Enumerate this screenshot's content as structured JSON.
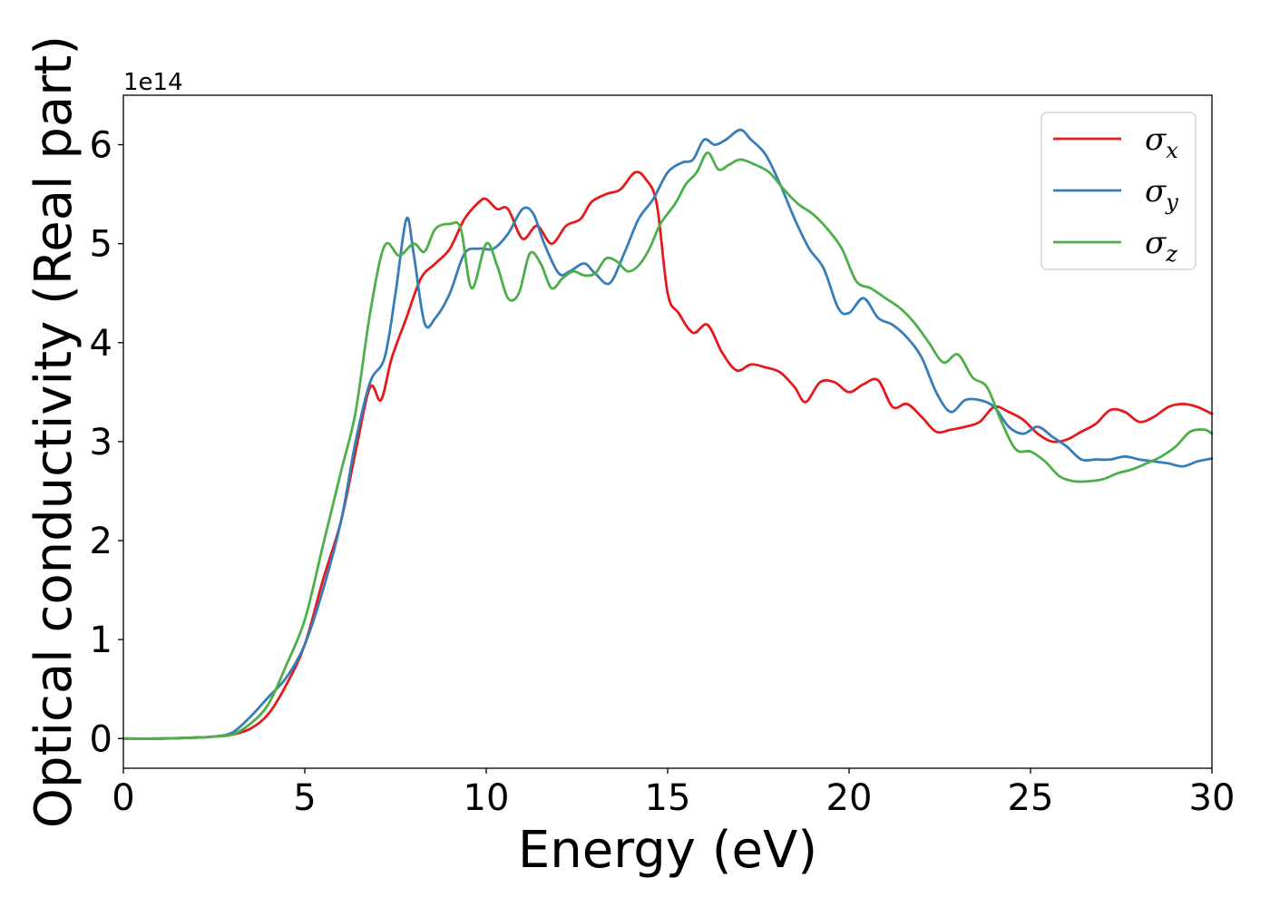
{
  "chart_data": {
    "type": "line",
    "xlabel": "Energy (eV)",
    "ylabel": "Optical conductivity (Real part)",
    "y_offset_label": "1e14",
    "xlim": [
      0,
      30
    ],
    "ylim": [
      -0.3,
      6.5
    ],
    "y_scale_factor": "1e14",
    "x_ticks": [
      0,
      5,
      10,
      15,
      20,
      25,
      30
    ],
    "y_ticks": [
      0,
      1,
      2,
      3,
      4,
      5,
      6
    ],
    "grid": false,
    "legend_position": "top-right",
    "series": [
      {
        "name": "σx",
        "symbol": "σ",
        "subscript": "x",
        "color": "#e41a1c",
        "x": [
          0,
          1,
          2,
          2.5,
          3,
          3.5,
          4,
          4.5,
          5,
          5.5,
          6,
          6.4,
          6.8,
          7.1,
          7.4,
          7.8,
          8.2,
          8.6,
          9.0,
          9.4,
          9.8,
          10.0,
          10.3,
          10.6,
          11.0,
          11.4,
          11.8,
          12.2,
          12.6,
          12.9,
          13.3,
          13.7,
          14.1,
          14.4,
          14.7,
          15.0,
          15.3,
          15.7,
          16.1,
          16.5,
          16.9,
          17.3,
          17.7,
          18.1,
          18.5,
          18.8,
          19.2,
          19.6,
          20.0,
          20.4,
          20.8,
          21.2,
          21.6,
          22.0,
          22.4,
          22.8,
          23.2,
          23.6,
          24.0,
          24.4,
          24.8,
          25.2,
          25.6,
          26.0,
          26.4,
          26.8,
          27.2,
          27.6,
          28.0,
          28.4,
          28.8,
          29.2,
          29.6,
          30.0
        ],
        "y": [
          0,
          0,
          0.01,
          0.02,
          0.04,
          0.1,
          0.25,
          0.55,
          0.95,
          1.6,
          2.2,
          2.9,
          3.55,
          3.42,
          3.85,
          4.25,
          4.65,
          4.8,
          4.95,
          5.25,
          5.42,
          5.45,
          5.35,
          5.35,
          5.05,
          5.18,
          5.0,
          5.18,
          5.25,
          5.42,
          5.5,
          5.55,
          5.72,
          5.65,
          5.4,
          4.5,
          4.3,
          4.1,
          4.18,
          3.9,
          3.72,
          3.78,
          3.75,
          3.7,
          3.55,
          3.4,
          3.6,
          3.6,
          3.5,
          3.58,
          3.62,
          3.35,
          3.38,
          3.25,
          3.1,
          3.12,
          3.15,
          3.2,
          3.35,
          3.3,
          3.22,
          3.08,
          3.0,
          3.02,
          3.1,
          3.18,
          3.32,
          3.3,
          3.2,
          3.25,
          3.35,
          3.38,
          3.35,
          3.28
        ]
      },
      {
        "name": "σy",
        "symbol": "σ",
        "subscript": "y",
        "color": "#377eb8",
        "x": [
          0,
          1,
          2,
          2.5,
          3,
          3.5,
          4,
          4.5,
          5,
          5.5,
          6,
          6.4,
          6.8,
          7.2,
          7.5,
          7.8,
          8.0,
          8.3,
          8.6,
          9.0,
          9.4,
          9.8,
          10.2,
          10.6,
          11.0,
          11.3,
          11.6,
          12.0,
          12.3,
          12.7,
          13.0,
          13.4,
          13.8,
          14.2,
          14.6,
          15.0,
          15.4,
          15.7,
          16.0,
          16.3,
          16.6,
          17.0,
          17.3,
          17.7,
          18.1,
          18.5,
          18.9,
          19.3,
          19.7,
          20.0,
          20.4,
          20.8,
          21.2,
          21.6,
          22.0,
          22.4,
          22.8,
          23.2,
          23.6,
          24.0,
          24.4,
          24.8,
          25.2,
          25.6,
          26.0,
          26.4,
          26.8,
          27.2,
          27.6,
          28.0,
          28.4,
          28.8,
          29.2,
          29.6,
          30.0
        ],
        "y": [
          0,
          0,
          0.01,
          0.02,
          0.06,
          0.22,
          0.42,
          0.62,
          0.95,
          1.5,
          2.2,
          3.0,
          3.6,
          3.85,
          4.5,
          5.25,
          4.9,
          4.2,
          4.25,
          4.5,
          4.9,
          4.95,
          4.95,
          5.1,
          5.35,
          5.3,
          5.0,
          4.7,
          4.72,
          4.8,
          4.7,
          4.6,
          4.9,
          5.25,
          5.45,
          5.72,
          5.82,
          5.85,
          6.05,
          6.0,
          6.05,
          6.15,
          6.05,
          5.9,
          5.6,
          5.25,
          4.95,
          4.75,
          4.35,
          4.3,
          4.45,
          4.25,
          4.18,
          4.05,
          3.85,
          3.5,
          3.3,
          3.42,
          3.42,
          3.35,
          3.15,
          3.08,
          3.15,
          3.05,
          2.95,
          2.82,
          2.82,
          2.82,
          2.85,
          2.82,
          2.8,
          2.78,
          2.75,
          2.8,
          2.83
        ]
      },
      {
        "name": "σz",
        "symbol": "σ",
        "subscript": "z",
        "color": "#4daf4a",
        "x": [
          0,
          1,
          2,
          2.5,
          3,
          3.5,
          4,
          4.5,
          5,
          5.5,
          6,
          6.4,
          6.8,
          7.2,
          7.6,
          8.0,
          8.3,
          8.6,
          9.0,
          9.3,
          9.6,
          10.0,
          10.3,
          10.6,
          10.9,
          11.2,
          11.5,
          11.8,
          12.1,
          12.4,
          12.7,
          13.0,
          13.3,
          13.6,
          13.9,
          14.2,
          14.5,
          14.8,
          15.2,
          15.5,
          15.8,
          16.1,
          16.4,
          16.7,
          17.0,
          17.4,
          17.8,
          18.2,
          18.6,
          19.0,
          19.4,
          19.8,
          20.2,
          20.6,
          21.0,
          21.4,
          21.8,
          22.2,
          22.6,
          23.0,
          23.4,
          23.8,
          24.2,
          24.6,
          25.0,
          25.4,
          25.8,
          26.2,
          26.6,
          27.0,
          27.4,
          27.8,
          28.2,
          28.6,
          29.0,
          29.4,
          29.8,
          30.0
        ],
        "y": [
          0,
          0,
          0.01,
          0.02,
          0.04,
          0.15,
          0.35,
          0.75,
          1.2,
          1.95,
          2.7,
          3.3,
          4.3,
          4.98,
          4.88,
          5.0,
          4.92,
          5.15,
          5.2,
          5.15,
          4.55,
          5.0,
          4.78,
          4.45,
          4.5,
          4.9,
          4.8,
          4.55,
          4.65,
          4.72,
          4.68,
          4.7,
          4.85,
          4.82,
          4.72,
          4.78,
          4.95,
          5.2,
          5.4,
          5.6,
          5.72,
          5.92,
          5.75,
          5.8,
          5.85,
          5.8,
          5.72,
          5.55,
          5.4,
          5.3,
          5.15,
          4.95,
          4.62,
          4.55,
          4.45,
          4.35,
          4.2,
          4.0,
          3.8,
          3.88,
          3.65,
          3.55,
          3.2,
          2.92,
          2.9,
          2.8,
          2.65,
          2.6,
          2.6,
          2.62,
          2.68,
          2.72,
          2.78,
          2.85,
          2.95,
          3.1,
          3.12,
          3.08
        ]
      }
    ]
  }
}
